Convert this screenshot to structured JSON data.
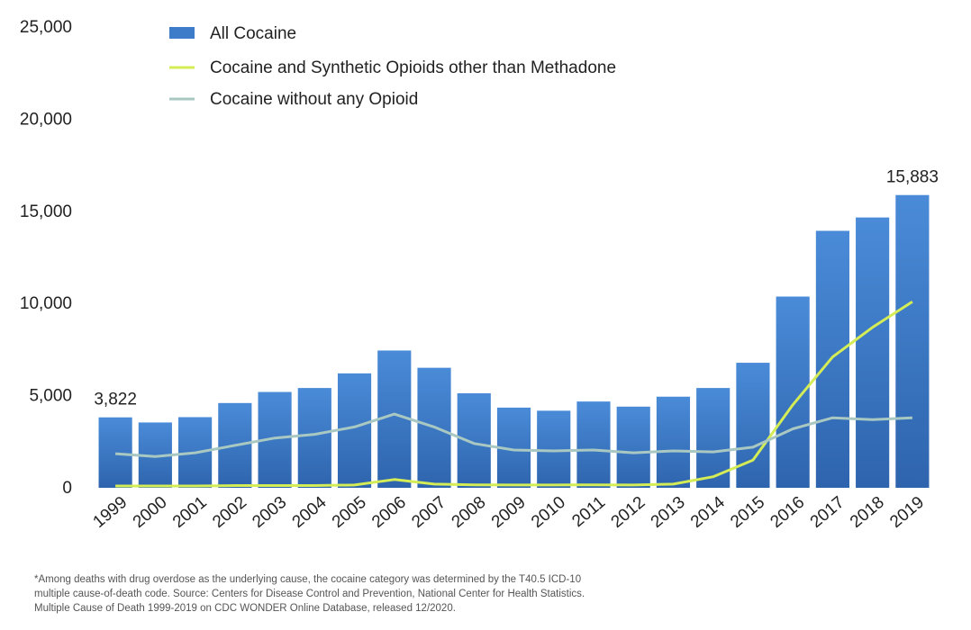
{
  "chart_data": {
    "type": "bar",
    "categories": [
      "1999",
      "2000",
      "2001",
      "2002",
      "2003",
      "2004",
      "2005",
      "2006",
      "2007",
      "2008",
      "2009",
      "2010",
      "2011",
      "2012",
      "2013",
      "2014",
      "2015",
      "2016",
      "2017",
      "2018",
      "2019"
    ],
    "series": [
      {
        "name": "All Cocaine",
        "kind": "bar",
        "color": "#3d7cc9",
        "values": [
          3822,
          3544,
          3833,
          4599,
          5199,
          5415,
          6208,
          7448,
          6512,
          5129,
          4350,
          4183,
          4681,
          4404,
          4944,
          5415,
          6784,
          10375,
          13942,
          14666,
          15883
        ]
      },
      {
        "name": "Cocaine and Synthetic Opioids other than Methadone",
        "kind": "line",
        "color": "#d4ec55",
        "values": [
          100,
          100,
          100,
          120,
          120,
          120,
          150,
          450,
          200,
          160,
          150,
          150,
          160,
          150,
          200,
          600,
          1500,
          4500,
          7100,
          8700,
          10100
        ]
      },
      {
        "name": "Cocaine without any Opioid",
        "kind": "line",
        "color": "#a9c8c2",
        "values": [
          1850,
          1700,
          1900,
          2300,
          2700,
          2900,
          3300,
          4000,
          3300,
          2400,
          2050,
          2000,
          2050,
          1900,
          2000,
          1950,
          2200,
          3200,
          3800,
          3700,
          3800
        ]
      }
    ],
    "yticks": [
      "0",
      "5,000",
      "10,000",
      "15,000",
      "20,000",
      "25,000"
    ],
    "ylim": [
      0,
      25000
    ],
    "annotations": [
      {
        "category": "1999",
        "label": "3,822"
      },
      {
        "category": "2019",
        "label": "15,883"
      }
    ],
    "legend_position": "top-left",
    "grid": false
  },
  "footnote": {
    "lines": [
      "*Among deaths with drug overdose as the underlying cause, the cocaine category was determined by the T40.5 ICD-10",
      "multiple cause-of-death code.  Source: Centers for Disease Control and Prevention, National Center for Health Statistics.",
      "Multiple Cause of Death 1999-2019 on CDC WONDER Online Database, released 12/2020."
    ]
  }
}
